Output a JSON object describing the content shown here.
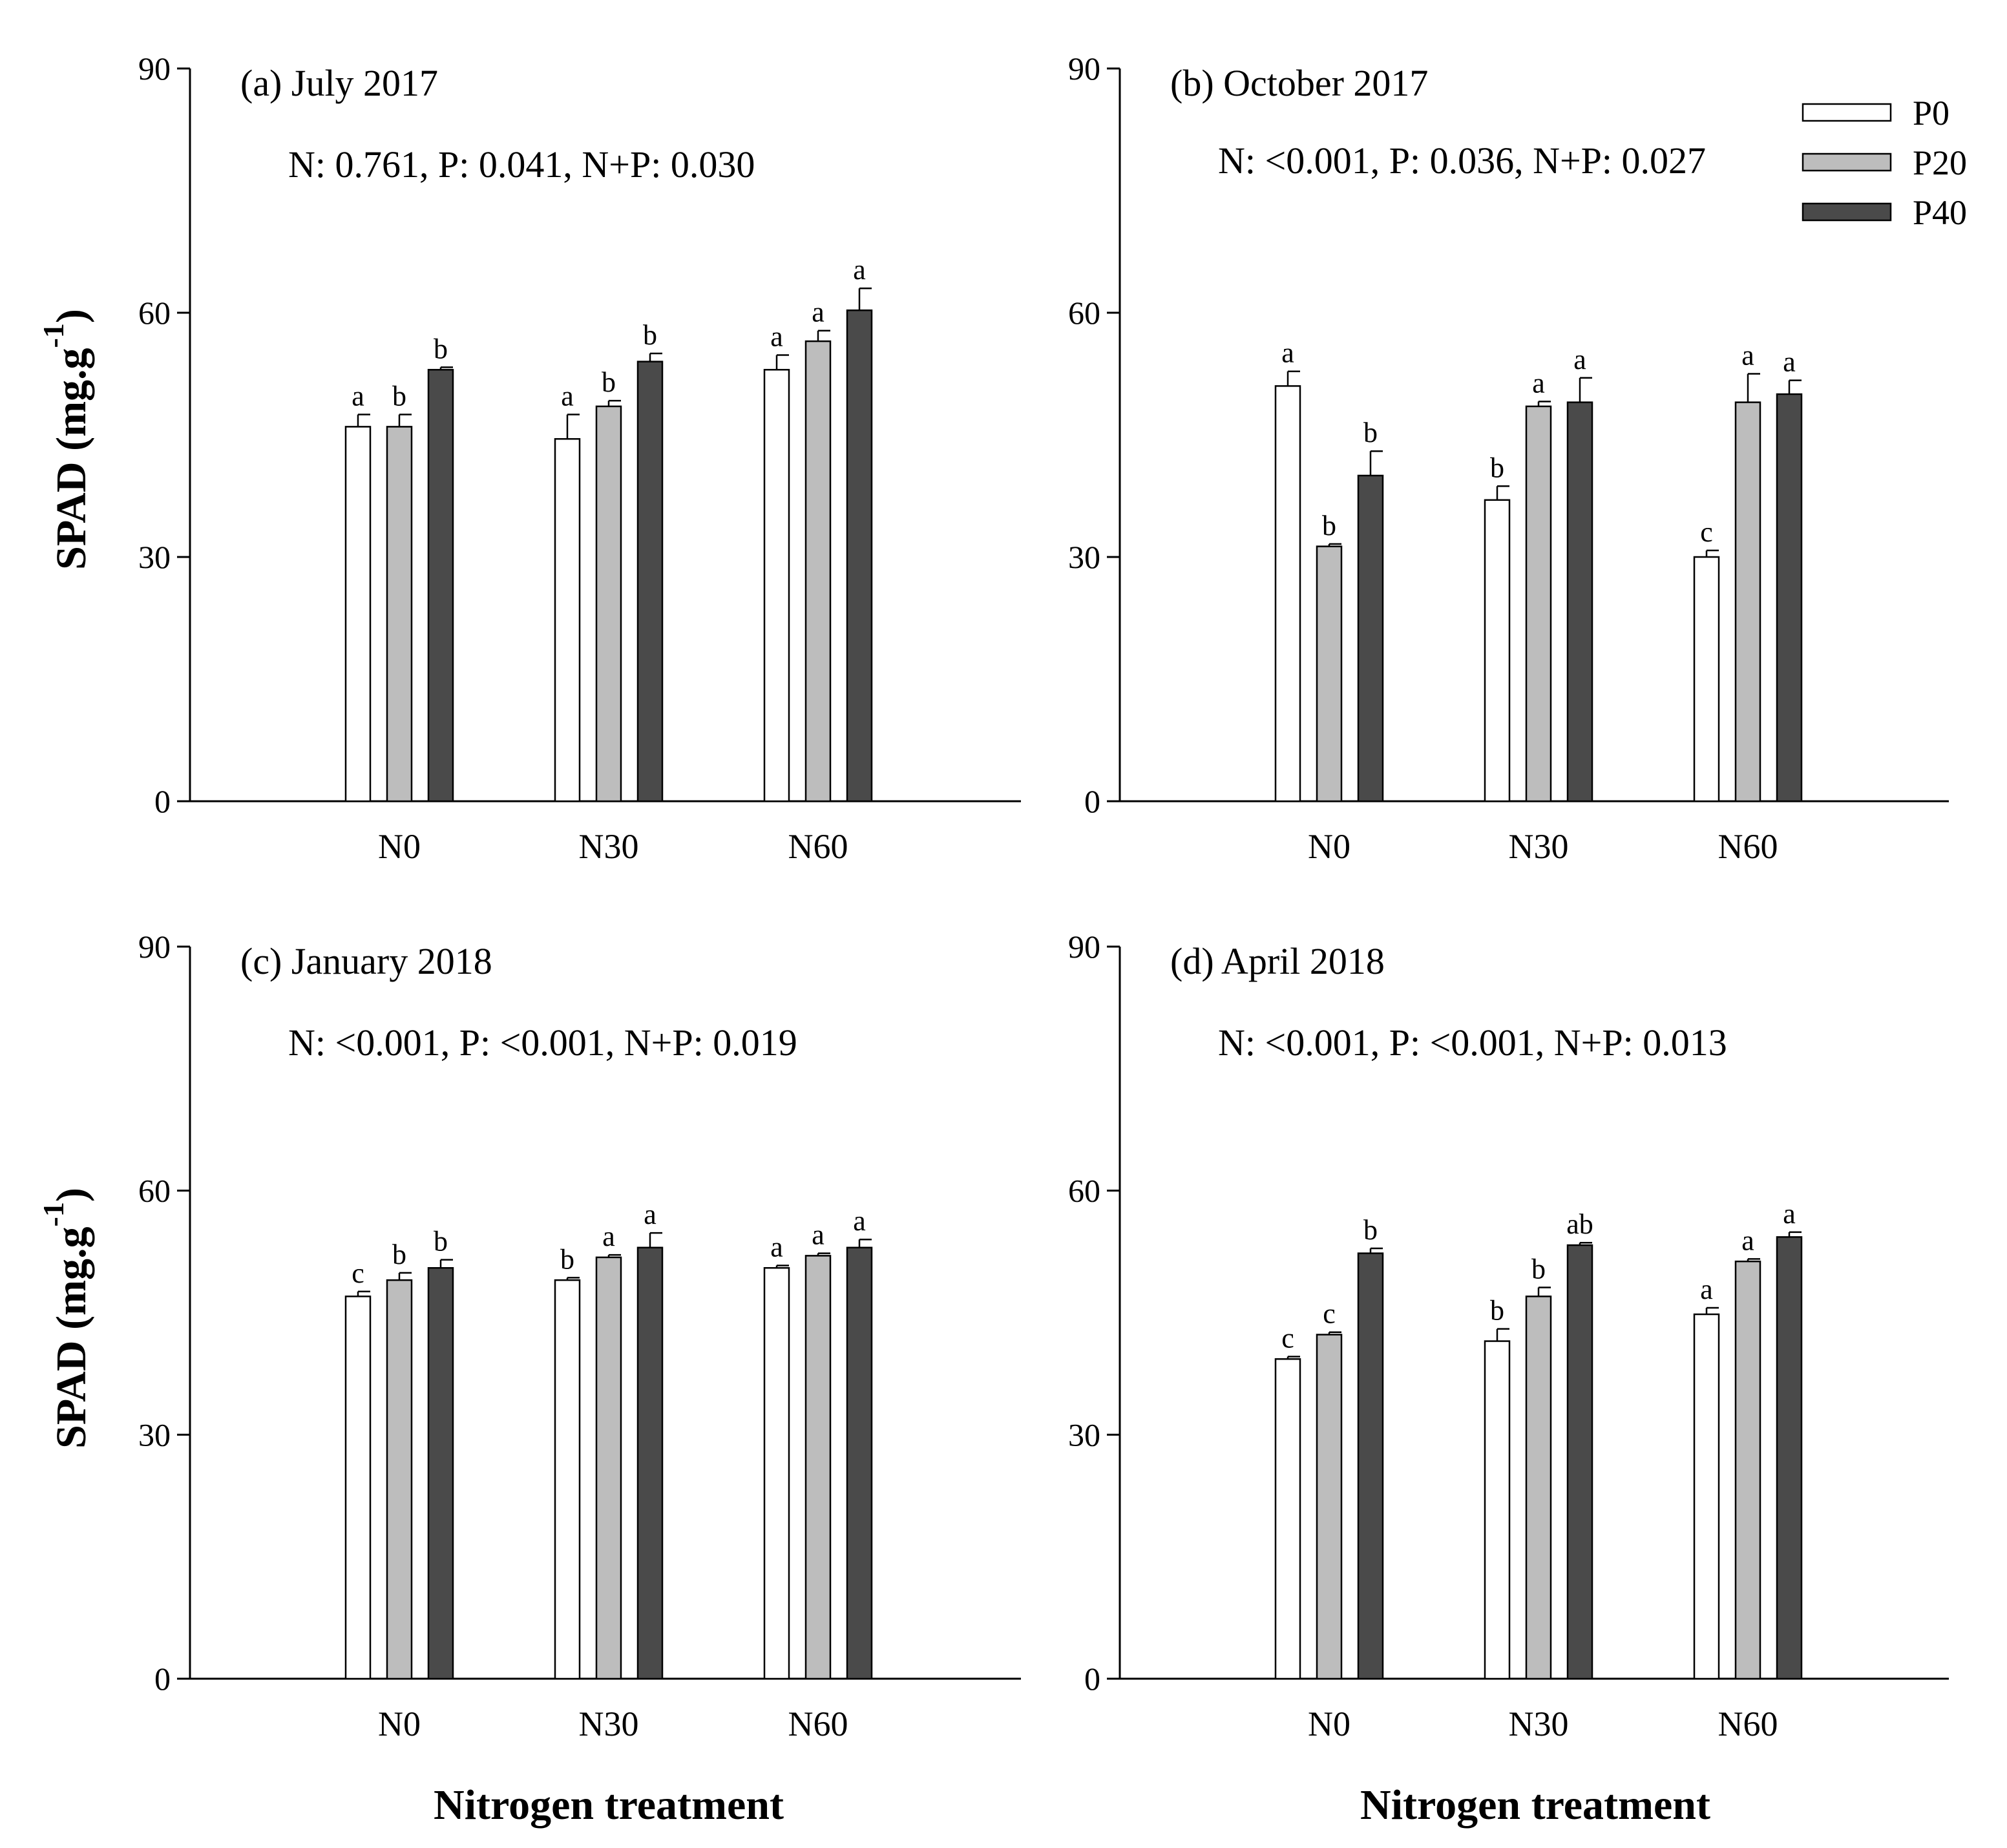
{
  "figure": {
    "y_axis_label": "SPAD (mg.g",
    "y_axis_superscript": "-1",
    "y_axis_close": ")",
    "x_axis_label": "Nitrogen treatment"
  },
  "legend": [
    {
      "name": "P0",
      "color": "#ffffff"
    },
    {
      "name": "P20",
      "color": "#bdbdbd"
    },
    {
      "name": "P40",
      "color": "#4a4a4a"
    }
  ],
  "chart_data": [
    {
      "type": "bar",
      "title": "(a) July 2017",
      "stats": "N: 0.761, P: 0.041, N+P: 0.030",
      "categories": [
        "N0",
        "N30",
        "N60"
      ],
      "ylim": [
        0,
        90
      ],
      "yticks": [
        0,
        30,
        60,
        90
      ],
      "series": [
        {
          "name": "P0",
          "values": [
            46,
            44.5,
            53
          ],
          "errors": [
            1.5,
            3,
            1.8
          ],
          "letters": [
            "a",
            "a",
            "a"
          ]
        },
        {
          "name": "P20",
          "values": [
            46,
            48.5,
            56.5
          ],
          "errors": [
            1.5,
            0.7,
            1.3
          ],
          "letters": [
            "b",
            "b",
            "a"
          ]
        },
        {
          "name": "P40",
          "values": [
            53,
            54,
            60.3
          ],
          "errors": [
            0.3,
            1.0,
            2.7
          ],
          "letters": [
            "b",
            "b",
            "a"
          ]
        }
      ]
    },
    {
      "type": "bar",
      "title": "(b) October 2017",
      "stats": "N: <0.001, P: 0.036, N+P: 0.027",
      "categories": [
        "N0",
        "N30",
        "N60"
      ],
      "ylim": [
        0,
        90
      ],
      "yticks": [
        0,
        30,
        60,
        90
      ],
      "series": [
        {
          "name": "P0",
          "values": [
            51,
            37,
            30
          ],
          "errors": [
            1.8,
            1.7,
            0.8
          ],
          "letters": [
            "a",
            "b",
            "c"
          ]
        },
        {
          "name": "P20",
          "values": [
            31.3,
            48.5,
            49
          ],
          "errors": [
            0.3,
            0.6,
            3.5
          ],
          "letters": [
            "b",
            "a",
            "a"
          ]
        },
        {
          "name": "P40",
          "values": [
            40,
            49,
            50
          ],
          "errors": [
            3,
            3,
            1.7
          ],
          "letters": [
            "b",
            "a",
            "a"
          ]
        }
      ]
    },
    {
      "type": "bar",
      "title": "(c) January 2018",
      "stats": "N: <0.001, P: <0.001, N+P: 0.019",
      "categories": [
        "N0",
        "N30",
        "N60"
      ],
      "ylim": [
        0,
        90
      ],
      "yticks": [
        0,
        30,
        60,
        90
      ],
      "series": [
        {
          "name": "P0",
          "values": [
            47,
            49,
            50.5
          ],
          "errors": [
            0.6,
            0.3,
            0.3
          ],
          "letters": [
            "c",
            "b",
            "a"
          ]
        },
        {
          "name": "P20",
          "values": [
            49,
            51.8,
            52
          ],
          "errors": [
            0.9,
            0.3,
            0.3
          ],
          "letters": [
            "b",
            "a",
            "a"
          ]
        },
        {
          "name": "P40",
          "values": [
            50.5,
            53,
            53
          ],
          "errors": [
            1,
            1.8,
            1
          ]
        }
      ]
    },
    {
      "type": "bar",
      "title": "(d) April 2018",
      "stats": "N: <0.001, P: <0.001, N+P: 0.013",
      "categories": [
        "N0",
        "N30",
        "N60"
      ],
      "ylim": [
        0,
        90
      ],
      "yticks": [
        0,
        30,
        60,
        90
      ],
      "series": [
        {
          "name": "P0",
          "values": [
            39.3,
            41.5,
            44.8
          ],
          "errors": [
            0.3,
            1.5,
            0.8
          ],
          "letters": [
            "c",
            "b",
            "a"
          ]
        },
        {
          "name": "P20",
          "values": [
            42.3,
            47,
            51.3
          ],
          "errors": [
            0.3,
            1.1,
            0.3
          ],
          "letters": [
            "c",
            "b",
            "a"
          ]
        },
        {
          "name": "P40",
          "values": [
            52.3,
            53.3,
            54.3
          ],
          "errors": [
            0.6,
            0.3,
            0.6
          ],
          "letters": [
            "b",
            "ab",
            "a"
          ]
        }
      ]
    }
  ]
}
